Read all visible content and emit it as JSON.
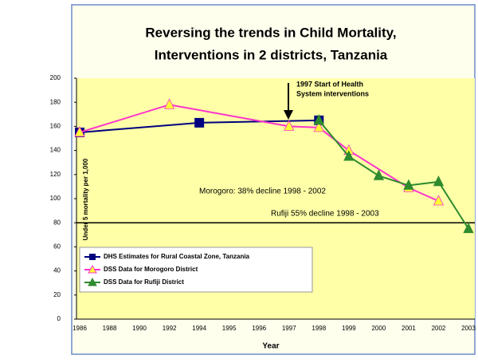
{
  "chart_data": {
    "type": "line",
    "title": [
      "Reversing the trends in Child Mortality,",
      "Interventions in 2 districts, Tanzania"
    ],
    "y_label": "Under 5 mortality per 1,000",
    "x_label": "Year",
    "categories": [
      "1986",
      "1988",
      "1990",
      "1992",
      "1994",
      "1995",
      "1996",
      "1997",
      "1998",
      "1999",
      "2000",
      "2001",
      "2002",
      "2003"
    ],
    "ylim": [
      0,
      200
    ],
    "yticks": [
      0,
      20,
      40,
      60,
      80,
      100,
      120,
      140,
      160,
      180,
      200
    ],
    "reference_line": 80,
    "series": [
      {
        "name": "DHS Estimates for Rural Coastal Zone, Tanzania",
        "color": "#000080",
        "marker": "square",
        "line": true,
        "x": [
          "1986",
          "1994",
          "1998"
        ],
        "values": [
          155,
          163,
          165
        ]
      },
      {
        "name": "DSS Data for Morogoro District",
        "color": "#ff33cc",
        "marker": "triangle",
        "marker_color": "#ffff33",
        "line": true,
        "x": [
          "1986",
          "1992",
          "1997",
          "1998",
          "1999",
          "2001",
          "2002"
        ],
        "values": [
          155,
          178,
          160,
          159,
          140,
          109,
          98
        ]
      },
      {
        "name": "DSS Data for Rufiji District",
        "color": "#2e8b2e",
        "marker": "triangle",
        "marker_color": "#2e8b2e",
        "line": true,
        "x": [
          "1998",
          "1999",
          "2000",
          "2001",
          "2002",
          "2003"
        ],
        "values": [
          165,
          135,
          119,
          111,
          114,
          75
        ]
      }
    ],
    "event_label": [
      "1997 Start of Health",
      "System interventions"
    ],
    "annotations": [
      "Morogoro: 38% decline 1998 - 2002",
      "Rufiji 55% decline 1998 - 2003"
    ],
    "legend": "lower left"
  }
}
